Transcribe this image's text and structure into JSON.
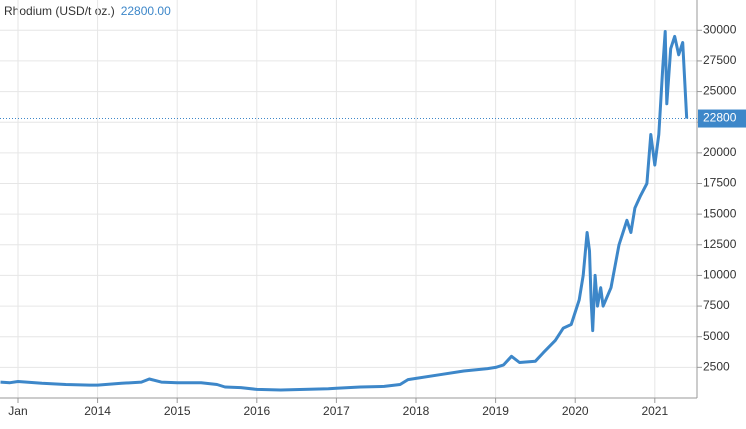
{
  "chart_data": {
    "type": "line",
    "x": [
      2012.78,
      2012.9,
      2013.0,
      2013.3,
      2013.6,
      2013.9,
      2014.0,
      2014.3,
      2014.55,
      2014.65,
      2014.8,
      2015.0,
      2015.3,
      2015.5,
      2015.6,
      2015.8,
      2016.0,
      2016.3,
      2016.6,
      2016.9,
      2017.0,
      2017.3,
      2017.6,
      2017.8,
      2017.9,
      2018.0,
      2018.3,
      2018.6,
      2018.9,
      2019.0,
      2019.1,
      2019.2,
      2019.3,
      2019.5,
      2019.6,
      2019.75,
      2019.85,
      2019.95,
      2020.05,
      2020.1,
      2020.15,
      2020.18,
      2020.2,
      2020.22,
      2020.25,
      2020.28,
      2020.32,
      2020.35,
      2020.45,
      2020.55,
      2020.6,
      2020.65,
      2020.7,
      2020.75,
      2020.82,
      2020.9,
      2020.95,
      2021.0,
      2021.05,
      2021.1,
      2021.13,
      2021.15,
      2021.2,
      2021.25,
      2021.3,
      2021.35,
      2021.4
    ],
    "series": [
      {
        "name": "Rhodium (USD/t oz.)",
        "color": "#3d87c9",
        "values": [
          1300,
          1250,
          1350,
          1200,
          1100,
          1050,
          1050,
          1200,
          1300,
          1550,
          1300,
          1250,
          1250,
          1100,
          900,
          850,
          700,
          650,
          700,
          750,
          800,
          900,
          950,
          1100,
          1500,
          1600,
          1900,
          2200,
          2400,
          2500,
          2700,
          3400,
          2900,
          3000,
          3700,
          4700,
          5700,
          6000,
          8000,
          10000,
          13500,
          12000,
          8000,
          5500,
          10000,
          7500,
          9000,
          7500,
          9000,
          12500,
          13500,
          14500,
          13500,
          15500,
          16500,
          17500,
          21500,
          19000,
          21500,
          27000,
          29900,
          24000,
          28500,
          29500,
          28000,
          29000,
          22800
        ]
      }
    ],
    "last_value": 22800,
    "last_value_label": "22800.00",
    "xlim": [
      2012.774,
      2021.53
    ],
    "xticks": [
      {
        "value": 2013,
        "label": "Jan"
      },
      2014,
      2015,
      2016,
      2017,
      2018,
      2019,
      2020,
      2021
    ],
    "ylim": [
      0,
      32470
    ],
    "yticks": [
      2500,
      5000,
      7500,
      10000,
      12500,
      15000,
      17500,
      20000,
      22500,
      25000,
      27500,
      30000
    ],
    "grid": true
  }
}
